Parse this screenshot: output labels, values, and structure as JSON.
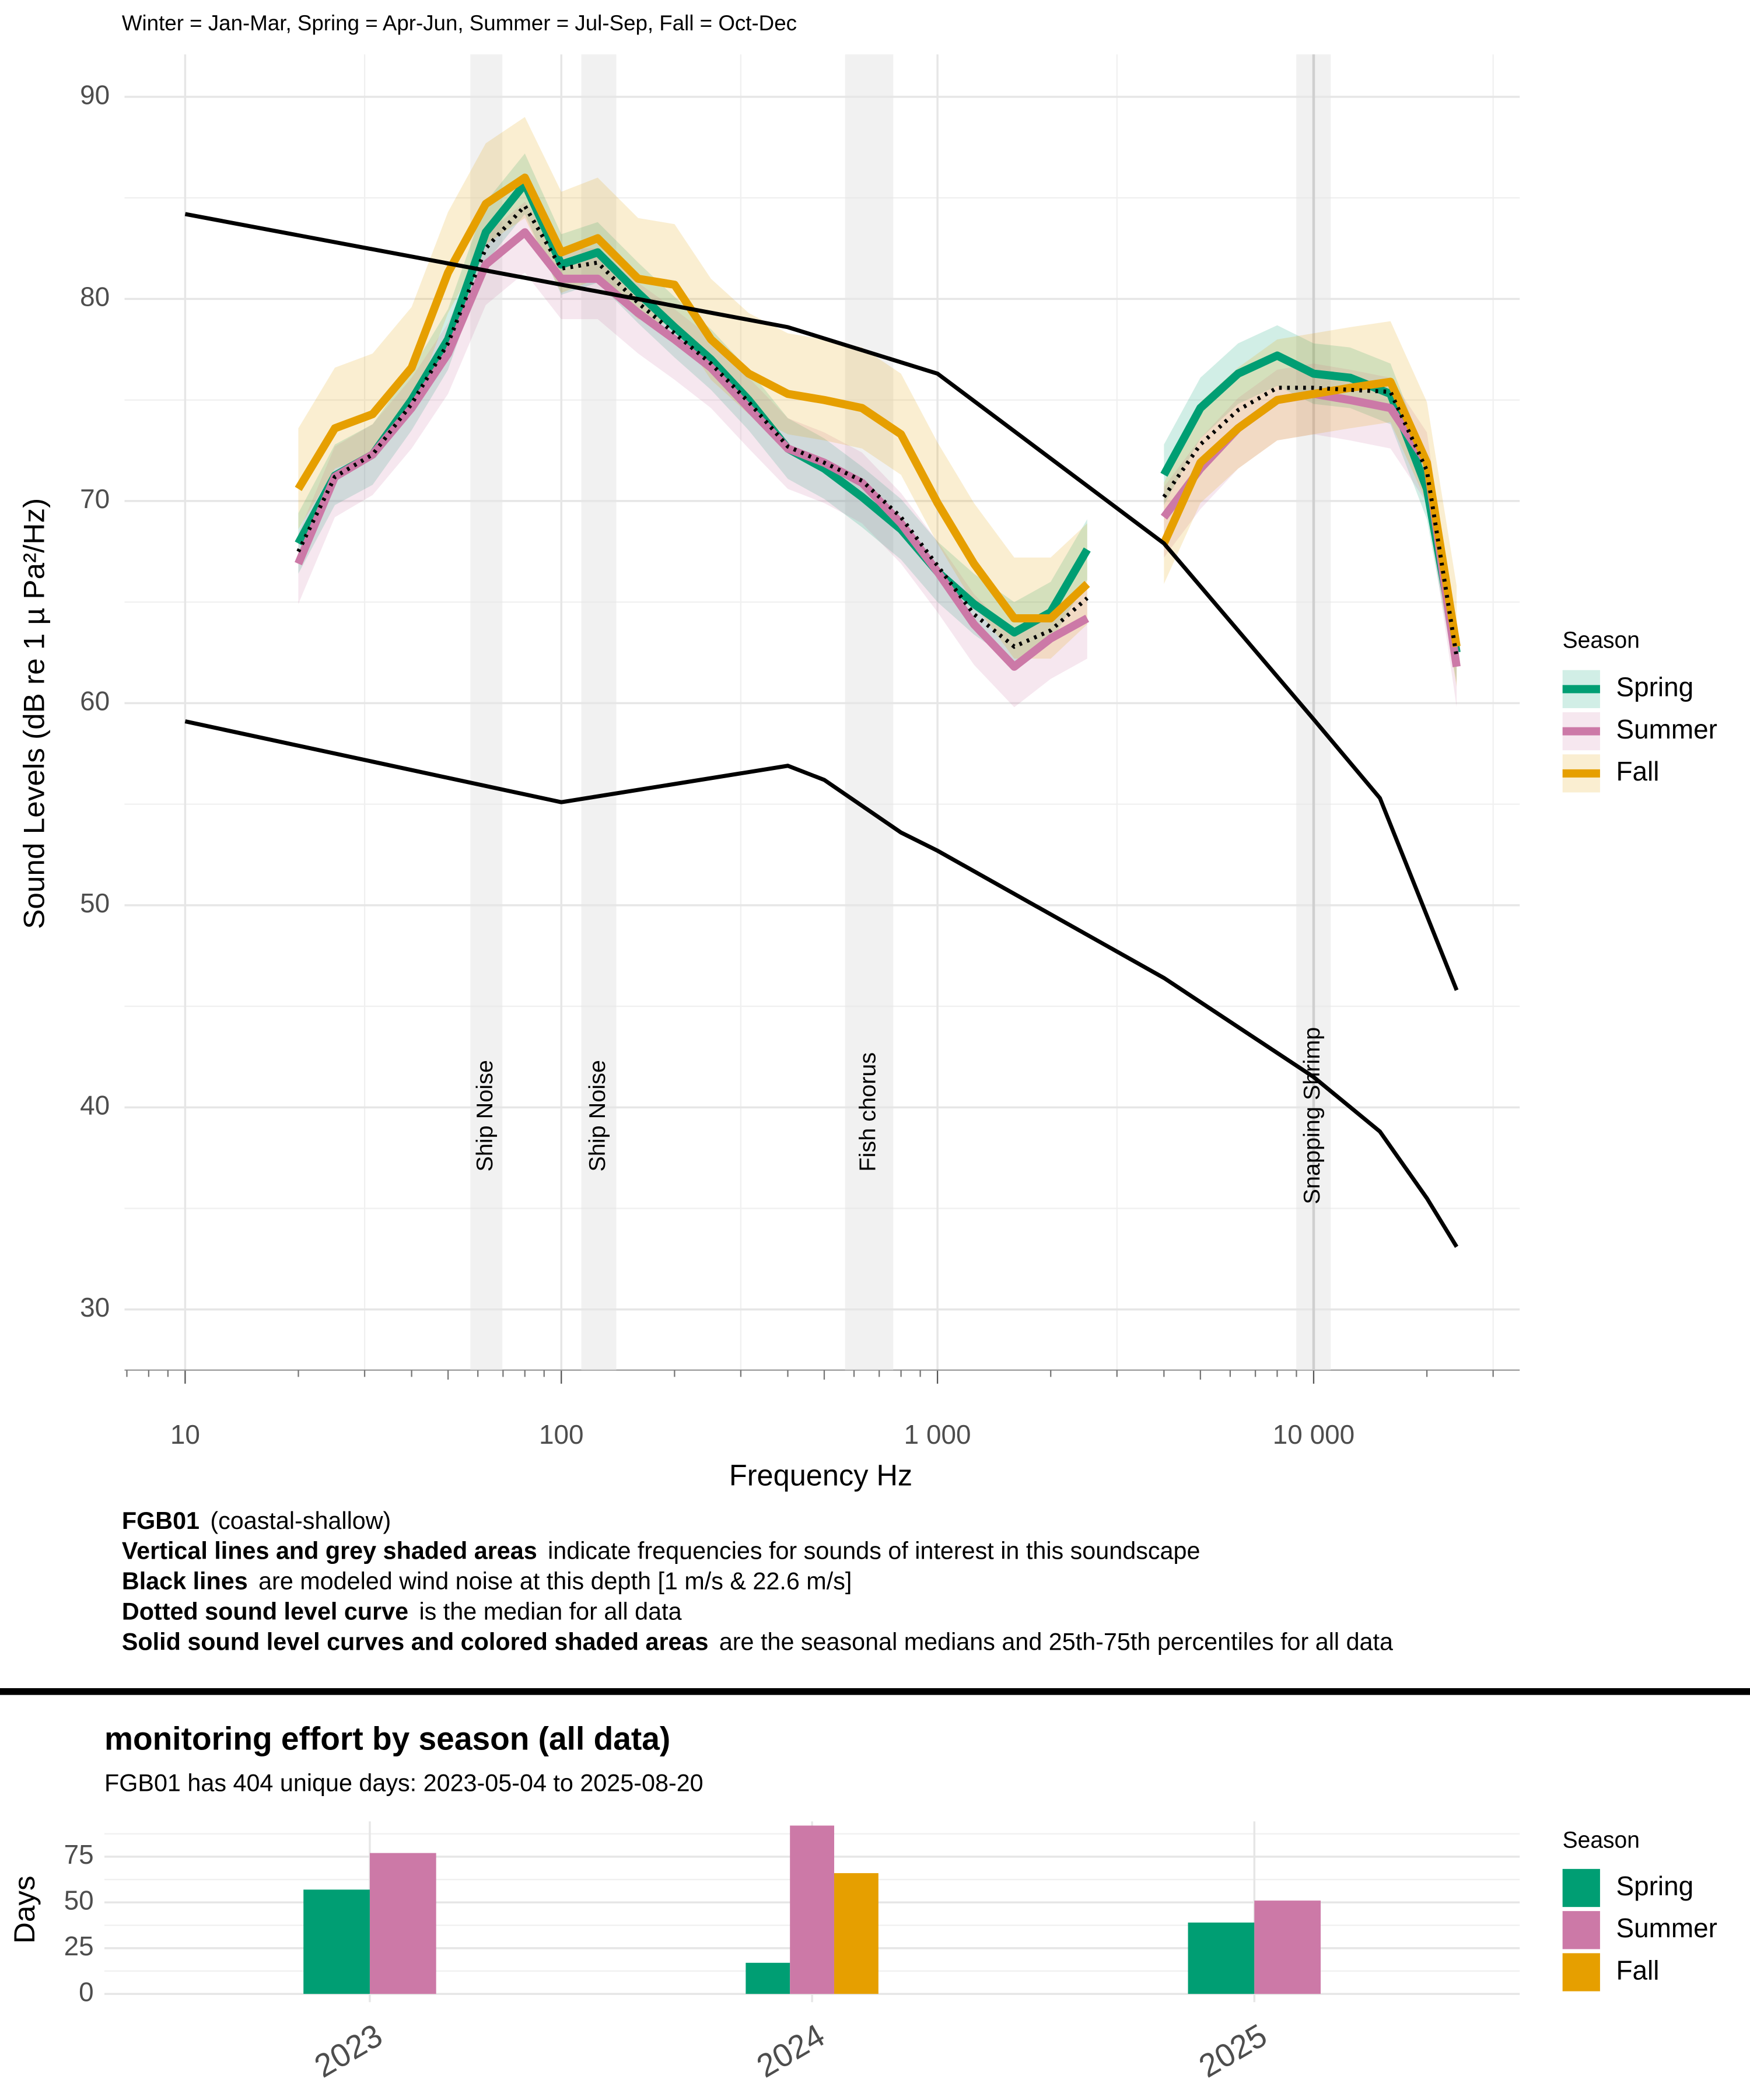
{
  "chart_data": [
    {
      "type": "line",
      "subtitle": "Winter = Jan-Mar, Spring = Apr-Jun, Summer = Jul-Sep, Fall = Oct-Dec",
      "x_label": "Frequency Hz",
      "y_label": "Sound Levels (dB re 1 µ Pa²/Hz)",
      "log_x": true,
      "grid": true,
      "legend_title": "Season",
      "legend_position": "right",
      "xlim": [
        6.9,
        35300
      ],
      "ylim": [
        27.0,
        92.1
      ],
      "xticks": [
        10,
        100,
        {
          "value": 1000,
          "label": "1 000"
        },
        {
          "value": 10000,
          "label": "10 000"
        }
      ],
      "xminor": [
        30,
        300,
        3000,
        30000
      ],
      "yticks": [
        30,
        40,
        50,
        60,
        70,
        80,
        90
      ],
      "yminor": [
        35,
        45,
        55,
        65,
        75,
        85
      ],
      "x": [
        20,
        25,
        31.5,
        40,
        50,
        63,
        80,
        100,
        125,
        160,
        200,
        250,
        315,
        400,
        500,
        630,
        800,
        1000,
        1250,
        1600,
        2000,
        2500,
        3150,
        4000,
        5000,
        6300,
        8000,
        10000,
        12500,
        16000,
        20000,
        24000
      ],
      "series": [
        {
          "name": "Spring",
          "color": "#009E73",
          "values": [
            67.9,
            71.25,
            72.3,
            75,
            78,
            83.3,
            85.7,
            81.7,
            82.3,
            80.3,
            78.6,
            77,
            75,
            72.6,
            71.6,
            70.2,
            68.6,
            66.5,
            64.9,
            63.5,
            64.5,
            67.6,
            null,
            71.3,
            74.6,
            76.3,
            77.2,
            76.3,
            76.1,
            75.3,
            70.6,
            62.5
          ],
          "lower": [
            66.4,
            69.8,
            70.8,
            73.5,
            76.5,
            81.8,
            84.2,
            80.2,
            80.8,
            78.8,
            77.1,
            75.5,
            73.5,
            71.1,
            70.1,
            68.7,
            67.1,
            65,
            63.4,
            62,
            63,
            66.1,
            null,
            69.8,
            73.1,
            74.8,
            75.7,
            74.8,
            74.6,
            73.8,
            69.1,
            61
          ],
          "upper": [
            69.4,
            72.8,
            73.8,
            76.5,
            79.5,
            84.8,
            87.2,
            83.2,
            83.8,
            81.8,
            80.1,
            78.5,
            76.5,
            74.1,
            73.1,
            71.7,
            70.1,
            68,
            66.4,
            65,
            66,
            69.1,
            null,
            72.8,
            76.1,
            77.8,
            78.7,
            77.8,
            77.6,
            76.8,
            72.1,
            64
          ]
        },
        {
          "name": "Summer",
          "color": "#CC79A7",
          "values": [
            66.9,
            71.2,
            72.3,
            74.6,
            77.3,
            81.7,
            83.3,
            81,
            81,
            79.3,
            78,
            76.6,
            74.6,
            72.6,
            71.9,
            70.9,
            68.9,
            66.5,
            63.9,
            61.8,
            63.2,
            64.2,
            null,
            69.2,
            71.6,
            73.6,
            75,
            75.3,
            75,
            74.6,
            71.9,
            61.8
          ],
          "lower": [
            64.9,
            69.2,
            70.3,
            72.6,
            75.3,
            79.7,
            81.3,
            79,
            79,
            77.3,
            76,
            74.6,
            72.6,
            70.6,
            69.9,
            68.9,
            66.9,
            64.5,
            61.9,
            59.8,
            61.2,
            62.2,
            null,
            67.2,
            69.6,
            71.6,
            73,
            73.3,
            73,
            72.6,
            69.9,
            59.8
          ],
          "upper": [
            68.4,
            72.7,
            73.8,
            76.1,
            78.8,
            83.2,
            84.8,
            82.5,
            82.5,
            80.8,
            79.5,
            78.1,
            76.1,
            74.1,
            73.4,
            72.4,
            70.4,
            68,
            65.4,
            63.3,
            64.7,
            65.7,
            null,
            70.7,
            73.1,
            75.1,
            76.5,
            76.8,
            76.5,
            76.1,
            73.4,
            63.3
          ]
        },
        {
          "name": "Fall",
          "color": "#E69F00",
          "values": [
            70.6,
            73.6,
            74.3,
            76.6,
            81.3,
            84.7,
            86,
            82.3,
            83,
            81,
            80.7,
            78,
            76.3,
            75.3,
            75,
            74.6,
            73.3,
            69.9,
            66.9,
            64.2,
            64.2,
            65.9,
            null,
            67.9,
            71.9,
            73.6,
            75,
            75.3,
            75.6,
            75.9,
            71.9,
            62.8
          ],
          "lower": [
            68.6,
            71.6,
            72.3,
            74.6,
            79.3,
            82.7,
            84,
            80.3,
            81,
            79,
            78.7,
            76,
            74.3,
            73.3,
            73,
            72.6,
            71.3,
            67.9,
            64.9,
            62.2,
            62.2,
            63.9,
            null,
            65.9,
            69.9,
            71.6,
            73,
            73.3,
            73.6,
            73.9,
            69.9,
            60.8
          ],
          "upper": [
            73.6,
            76.6,
            77.3,
            79.6,
            84.3,
            87.7,
            89,
            85.3,
            86,
            84,
            83.7,
            81,
            79.3,
            78.3,
            78,
            77.6,
            76.3,
            72.9,
            69.9,
            67.2,
            67.2,
            68.9,
            null,
            70.9,
            74.9,
            76.6,
            78,
            78.3,
            78.6,
            78.9,
            74.9,
            65.8
          ]
        }
      ],
      "median_all": {
        "color": "#000000",
        "values": [
          67.5,
          71.2,
          72.3,
          74.8,
          77.8,
          82.5,
          84.6,
          81.5,
          81.8,
          79.8,
          78.3,
          76.8,
          74.9,
          72.7,
          71.9,
          71,
          69.2,
          66.8,
          64.4,
          62.8,
          63.6,
          65.2,
          null,
          70.2,
          72.8,
          74.5,
          75.6,
          75.6,
          75.5,
          75.4,
          71.5,
          62.3
        ]
      },
      "reference_lines": [
        {
          "color": "#000000",
          "x": [
            10,
            400,
            1000,
            4000,
            10000,
            15000,
            24000
          ],
          "values": [
            84.2,
            78.6,
            76.3,
            67.9,
            59.2,
            55.3,
            45.8
          ]
        },
        {
          "color": "#000000",
          "x": [
            10,
            100,
            400,
            500,
            800,
            1000,
            4000,
            10000,
            15000,
            20000,
            24000
          ],
          "values": [
            59.1,
            55.1,
            56.9,
            56.2,
            53.6,
            52.7,
            46.4,
            41.5,
            38.8,
            35.5,
            33.1
          ]
        }
      ],
      "regions": [
        {
          "label": "Ship Noise",
          "from": 57.3,
          "to": 69.7
        },
        {
          "label": "Ship Noise",
          "from": 113,
          "to": 140
        },
        {
          "label": "Fish chorus",
          "from": 568,
          "to": 763
        },
        {
          "label": "Snapping Shrimp",
          "from": 8990,
          "to": 11100,
          "line": 10000
        }
      ]
    },
    {
      "type": "bar",
      "title": "monitoring effort by season (all data)",
      "subtitle": "FGB01 has 404 unique days: 2023-05-04 to 2025-08-20",
      "y_label": "Days",
      "legend_title": "Season",
      "legend_position": "right",
      "grid": true,
      "categories": [
        "2023",
        "2024",
        "2025"
      ],
      "ylim": [
        -4.5,
        94.3
      ],
      "yticks": [
        0,
        25,
        50,
        75
      ],
      "yminor": [
        12.5,
        37.5,
        62.5,
        87.5
      ],
      "series": [
        {
          "name": "Spring",
          "color": "#009E73",
          "values": [
            57,
            17,
            39
          ]
        },
        {
          "name": "Summer",
          "color": "#CC79A7",
          "values": [
            77,
            92,
            51
          ]
        },
        {
          "name": "Fall",
          "color": "#E69F00",
          "values": [
            null,
            66,
            null
          ]
        }
      ]
    }
  ],
  "notes": [
    {
      "bold": "FGB01",
      "text": "(coastal-shallow)"
    },
    {
      "bold": "Vertical  lines and grey shaded areas",
      "text": "indicate frequencies for sounds of interest in this soundscape"
    },
    {
      "bold": "Black lines",
      "text": "are modeled wind noise at this depth [1 m/s & 22.6 m/s]"
    },
    {
      "bold": "Dotted sound level curve",
      "text": "is the median for all data"
    },
    {
      "bold": "Solid sound level curves and colored shaded areas",
      "text": "are the seasonal medians and 25th-75th percentiles for all data"
    }
  ]
}
